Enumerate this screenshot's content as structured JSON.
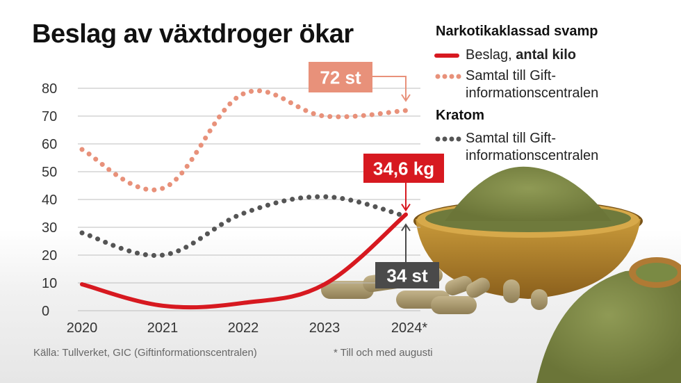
{
  "title": "Beslag av växtdroger ökar",
  "legend": {
    "group1": "Narkotikaklassad svamp",
    "beslag_label": "Beslag,",
    "beslag_bold": "antal kilo",
    "samtal_line1": "Samtal till Gift-",
    "samtal_line2": "informationscentralen",
    "group2": "Kratom",
    "kratom_line1": "Samtal till Gift-",
    "kratom_line2": "informationscentralen"
  },
  "source": "Källa: Tullverket, GIC (Giftinformationscentralen)",
  "footnote": "* Till och med augusti",
  "colors": {
    "beslag": "#d71920",
    "svamp_samtal": "#e8917a",
    "kratom_samtal": "#555555",
    "grid": "#bdbdbd",
    "callout_grey": "#4a4a4a"
  },
  "chart_data": {
    "type": "line",
    "title": "Beslag av växtdroger ökar",
    "categories": [
      "2020",
      "2021",
      "2022",
      "2023",
      "2024*"
    ],
    "ylim": [
      0,
      80
    ],
    "yticks": [
      0,
      10,
      20,
      30,
      40,
      50,
      60,
      70,
      80
    ],
    "grid": true,
    "legend_position": "top-right",
    "series": [
      {
        "name": "Narkotikaklassad svamp – Beslag, antal kilo",
        "style": "solid",
        "color": "#d71920",
        "values": [
          9.5,
          1.8,
          2.8,
          9.5,
          34.6
        ]
      },
      {
        "name": "Narkotikaklassad svamp – Samtal till Giftinformationscentralen",
        "style": "dotted",
        "color": "#e8917a",
        "values": [
          58,
          44,
          78,
          70,
          72
        ]
      },
      {
        "name": "Kratom – Samtal till Giftinformationscentralen",
        "style": "dotted",
        "color": "#555555",
        "values": [
          28,
          20,
          35,
          41,
          34
        ]
      }
    ],
    "annotations": [
      {
        "text": "72 st",
        "series": 1,
        "index": 4
      },
      {
        "text": "34,6 kg",
        "series": 0,
        "index": 4
      },
      {
        "text": "34 st",
        "series": 2,
        "index": 4
      }
    ]
  }
}
